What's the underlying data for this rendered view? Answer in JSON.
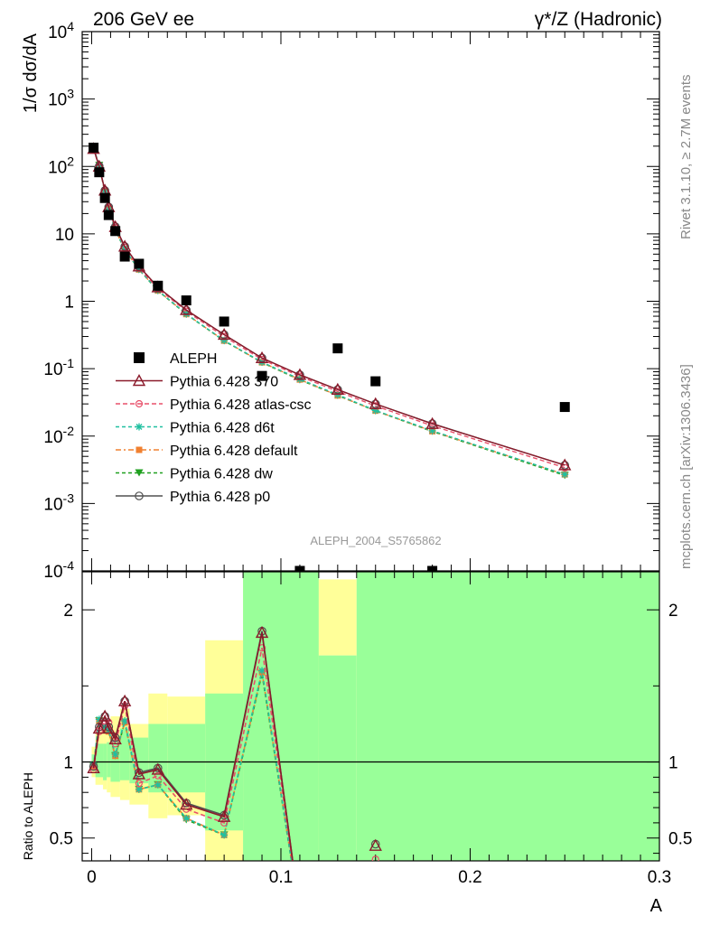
{
  "header": {
    "left_title": "206 GeV ee",
    "right_title": "γ*/Z (Hadronic)"
  },
  "side_text": {
    "rivet": "Rivet 3.1.10, ≥ 2.7M events",
    "mcplots": "mcplots.cern.ch [arXiv:1306.3436]"
  },
  "analysis_label": "ALEPH_2004_S5765862",
  "colors": {
    "data": "#000000",
    "p370": "#8b1a2b",
    "atlas": "#e8506a",
    "d6t": "#20c0a0",
    "default": "#f08030",
    "dw": "#20a020",
    "p0": "#505050",
    "band_yellow": "#ffff99",
    "band_green": "#99ff99"
  },
  "chart_data": [
    {
      "type": "scatter",
      "panel": "main",
      "ylabel": "1/σ  dσ/dA",
      "yscale": "log",
      "ylim": [
        0.0001,
        10000
      ],
      "xlim": [
        -0.005,
        0.3
      ],
      "y_tick_labels": [
        "10^-4",
        "10^-3",
        "10^-2",
        "10^-1",
        "1",
        "10",
        "10^2",
        "10^3",
        "10^4"
      ],
      "legend_position": "middle-left",
      "legend": [
        "ALEPH",
        "Pythia 6.428 370",
        "Pythia 6.428 atlas-csc",
        "Pythia 6.428 d6t",
        "Pythia 6.428 default",
        "Pythia 6.428 dw",
        "Pythia 6.428 p0"
      ],
      "x": [
        0.001,
        0.004,
        0.007,
        0.009,
        0.0125,
        0.0175,
        0.025,
        0.035,
        0.05,
        0.07,
        0.09,
        0.11,
        0.13,
        0.15,
        0.18,
        0.25
      ],
      "series": [
        {
          "name": "ALEPH",
          "key": "data",
          "marker": "square",
          "values": [
            190,
            82,
            34,
            19,
            11,
            4.6,
            3.6,
            1.7,
            1.03,
            0.5,
            0.078,
            0.0001,
            0.2,
            0.065,
            0.0001,
            0.027
          ]
        },
        {
          "name": "Pythia 6.428 370",
          "key": "p370",
          "marker": "triangle",
          "dash": "",
          "values": [
            183,
            100,
            44,
            25,
            12.7,
            6.5,
            3.3,
            1.62,
            0.745,
            0.32,
            0.144,
            0.081,
            0.049,
            0.03,
            0.0152,
            0.0037
          ]
        },
        {
          "name": "Pythia 6.428 atlas-csc",
          "key": "atlas",
          "marker": "circle",
          "dash": "5,3",
          "values": [
            180,
            98,
            43,
            24,
            12.3,
            6.3,
            3.1,
            1.55,
            0.71,
            0.3,
            0.137,
            0.077,
            0.046,
            0.028,
            0.0142,
            0.0034
          ]
        },
        {
          "name": "Pythia 6.428 d6t",
          "key": "d6t",
          "marker": "star",
          "dash": "4,3",
          "values": [
            186,
            105,
            42,
            23,
            11.5,
            5.9,
            2.98,
            1.45,
            0.65,
            0.262,
            0.125,
            0.07,
            0.041,
            0.024,
            0.012,
            0.0027
          ]
        },
        {
          "name": "Pythia 6.428 default",
          "key": "default",
          "marker": "filled-square",
          "dash": "6,3,2,3",
          "values": [
            185,
            104,
            41,
            23,
            11.4,
            5.8,
            2.96,
            1.44,
            0.645,
            0.26,
            0.124,
            0.069,
            0.04,
            0.0238,
            0.0118,
            0.0027
          ]
        },
        {
          "name": "Pythia 6.428 dw",
          "key": "dw",
          "marker": "down-triangle",
          "dash": "4,3",
          "values": [
            185,
            104,
            41,
            23,
            11.4,
            5.8,
            2.95,
            1.43,
            0.64,
            0.258,
            0.123,
            0.068,
            0.04,
            0.0236,
            0.0117,
            0.0026
          ]
        },
        {
          "name": "Pythia 6.428 p0",
          "key": "p0",
          "marker": "open-circle",
          "dash": "",
          "values": [
            184,
            101,
            44,
            25,
            12.8,
            6.5,
            3.3,
            1.62,
            0.74,
            0.32,
            0.144,
            0.081,
            0.049,
            0.03,
            0.0153,
            0.0037
          ]
        }
      ]
    },
    {
      "type": "line",
      "panel": "ratio",
      "xlabel": "A",
      "ylabel": "Ratio to ALEPH",
      "ylim": [
        0.35,
        2.25
      ],
      "xlim": [
        -0.005,
        0.3
      ],
      "x_tick_labels": [
        "0",
        "0.1",
        "0.2",
        "0.3"
      ],
      "y_tick_labels": [
        "0.5",
        "1",
        "2"
      ],
      "reference_line": 1,
      "bands": [
        {
          "x_range": [
            0,
            0.002
          ],
          "yellow": [
            0.9,
            1.1
          ],
          "green": [
            0.95,
            1.05
          ]
        },
        {
          "x_range": [
            0.002,
            0.006
          ],
          "yellow": [
            0.85,
            1.2
          ],
          "green": [
            0.9,
            1.12
          ]
        },
        {
          "x_range": [
            0.006,
            0.008
          ],
          "yellow": [
            0.82,
            1.22
          ],
          "green": [
            0.88,
            1.12
          ]
        },
        {
          "x_range": [
            0.008,
            0.01
          ],
          "yellow": [
            0.8,
            1.25
          ],
          "green": [
            0.9,
            1.13
          ]
        },
        {
          "x_range": [
            0.01,
            0.015
          ],
          "yellow": [
            0.77,
            1.3
          ],
          "green": [
            0.87,
            1.15
          ]
        },
        {
          "x_range": [
            0.015,
            0.02
          ],
          "yellow": [
            0.75,
            1.35
          ],
          "green": [
            0.88,
            1.22
          ]
        },
        {
          "x_range": [
            0.02,
            0.03
          ],
          "yellow": [
            0.72,
            1.25
          ],
          "green": [
            0.86,
            1.16
          ]
        },
        {
          "x_range": [
            0.03,
            0.04
          ],
          "yellow": [
            0.63,
            1.45
          ],
          "green": [
            0.8,
            1.25
          ]
        },
        {
          "x_range": [
            0.04,
            0.06
          ],
          "yellow": [
            0.65,
            1.43
          ],
          "green": [
            0.8,
            1.25
          ]
        },
        {
          "x_range": [
            0.06,
            0.08
          ],
          "yellow": [
            0.35,
            1.8
          ],
          "green": [
            0.55,
            1.45
          ]
        },
        {
          "x_range": [
            0.08,
            0.12
          ],
          "yellow": [
            0.35,
            2.3
          ],
          "green": [
            0.35,
            2.3
          ]
        },
        {
          "x_range": [
            0.12,
            0.14
          ],
          "yellow": [
            1.7,
            2.2
          ],
          "green": [
            0.35,
            1.7
          ]
        },
        {
          "x_range": [
            0.14,
            0.3
          ],
          "yellow": [
            0.35,
            2.3
          ],
          "green": [
            0.35,
            2.3
          ]
        }
      ],
      "series": [
        {
          "name": "Pythia 6.428 370",
          "key": "p370",
          "marker": "triangle",
          "dash": "",
          "values": [
            0.96,
            1.22,
            1.3,
            1.22,
            1.15,
            1.4,
            0.92,
            0.95,
            0.72,
            0.64,
            1.85,
            0.0,
            null,
            0.45,
            null,
            null
          ]
        },
        {
          "name": "Pythia 6.428 atlas-csc",
          "key": "atlas",
          "marker": "circle",
          "dash": "5,3",
          "values": [
            0.95,
            1.2,
            1.27,
            1.26,
            1.12,
            1.37,
            0.86,
            0.91,
            0.69,
            0.6,
            1.75,
            0.0,
            null,
            0.36,
            null,
            null
          ]
        },
        {
          "name": "Pythia 6.428 d6t",
          "key": "d6t",
          "marker": "star",
          "dash": "4,3",
          "values": [
            0.98,
            1.28,
            1.23,
            1.21,
            1.05,
            1.27,
            0.82,
            0.85,
            0.63,
            0.52,
            1.6,
            0.0,
            null,
            null,
            null,
            null
          ]
        },
        {
          "name": "Pythia 6.428 default",
          "key": "default",
          "marker": "filled-square",
          "dash": "6,3,2,3",
          "values": [
            0.97,
            1.27,
            1.22,
            1.2,
            1.04,
            1.26,
            0.82,
            0.85,
            0.63,
            0.52,
            1.59,
            0.0,
            null,
            null,
            null,
            null
          ]
        },
        {
          "name": "Pythia 6.428 dw",
          "key": "dw",
          "marker": "down-triangle",
          "dash": "4,3",
          "values": [
            0.97,
            1.27,
            1.21,
            1.2,
            1.04,
            1.26,
            0.82,
            0.85,
            0.62,
            0.52,
            1.58,
            0.0,
            null,
            null,
            null,
            null
          ]
        },
        {
          "name": "Pythia 6.428 p0",
          "key": "p0",
          "marker": "open-circle",
          "dash": "",
          "values": [
            0.97,
            1.23,
            1.3,
            1.23,
            1.16,
            1.4,
            0.93,
            0.96,
            0.73,
            0.65,
            1.86,
            0.0,
            null,
            0.46,
            null,
            null
          ]
        }
      ]
    }
  ]
}
